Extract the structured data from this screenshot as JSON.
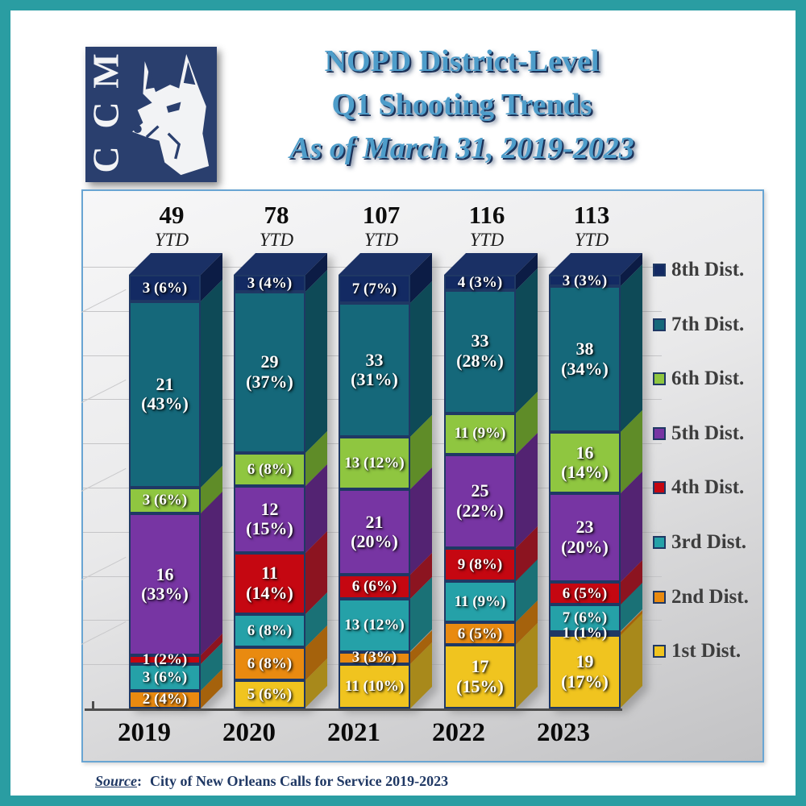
{
  "logo": {
    "text": "MCC"
  },
  "title": {
    "line1": "NOPD District-Level",
    "line2": "Q1 Shooting Trends",
    "line3": "As of March 31, 2019-2023"
  },
  "source": {
    "label": "Source",
    "colon": ":",
    "text": "City of New Orleans Calls for Service 2019-2023"
  },
  "colors": {
    "frame_teal": "#2a9da2",
    "panel_border": "#69a5d3",
    "title_blue": "#4e9dca",
    "title_shadow_navy": "#1c3259",
    "segment_outline_navy": "#1f3864",
    "bar_top_face_navy": "#1a3065",
    "logo_navy": "#2a3f6e",
    "source_navy": "#1f3864"
  },
  "chart_data": {
    "type": "bar",
    "variant": "3d-stacked-100pct",
    "title": "NOPD District-Level Q1 Shooting Trends As of March 31, 2019-2023",
    "xlabel": "",
    "ylabel": "",
    "ylim": [
      0,
      100
    ],
    "grid": true,
    "legend_position": "right",
    "categories": [
      "2019",
      "2020",
      "2021",
      "2022",
      "2023"
    ],
    "totals": [
      49,
      78,
      107,
      116,
      113
    ],
    "ytd_label": "YTD",
    "series": [
      {
        "name": "1st Dist.",
        "color": "#f0c41f",
        "side_color": "#a8891b",
        "values": [
          0,
          5,
          11,
          17,
          19
        ],
        "pcts": [
          null,
          6,
          10,
          15,
          17
        ]
      },
      {
        "name": "2nd Dist.",
        "color": "#e98a10",
        "side_color": "#a5620c",
        "values": [
          2,
          6,
          3,
          6,
          1
        ],
        "pcts": [
          4,
          8,
          3,
          5,
          1
        ]
      },
      {
        "name": "3rd Dist.",
        "color": "#25a1a8",
        "side_color": "#1a7176",
        "values": [
          3,
          6,
          13,
          11,
          7
        ],
        "pcts": [
          6,
          8,
          12,
          9,
          6
        ]
      },
      {
        "name": "4th Dist.",
        "color": "#c50711",
        "side_color": "#8c1420",
        "values": [
          1,
          11,
          6,
          9,
          6
        ],
        "pcts": [
          2,
          14,
          6,
          8,
          5
        ]
      },
      {
        "name": "5th Dist.",
        "color": "#7735a3",
        "side_color": "#532372",
        "values": [
          16,
          12,
          21,
          25,
          23
        ],
        "pcts": [
          33,
          15,
          20,
          22,
          20
        ]
      },
      {
        "name": "6th Dist.",
        "color": "#8fc640",
        "side_color": "#5f8c28",
        "values": [
          3,
          6,
          13,
          11,
          16
        ],
        "pcts": [
          6,
          8,
          12,
          9,
          14
        ]
      },
      {
        "name": "7th Dist.",
        "color": "#15687a",
        "side_color": "#0e4a57",
        "values": [
          21,
          29,
          33,
          33,
          38
        ],
        "pcts": [
          43,
          37,
          31,
          28,
          34
        ]
      },
      {
        "name": "8th Dist.",
        "color": "#132a63",
        "side_color": "#0c1c45",
        "values": [
          3,
          3,
          7,
          4,
          3
        ],
        "pcts": [
          6,
          4,
          7,
          3,
          3
        ]
      }
    ]
  }
}
